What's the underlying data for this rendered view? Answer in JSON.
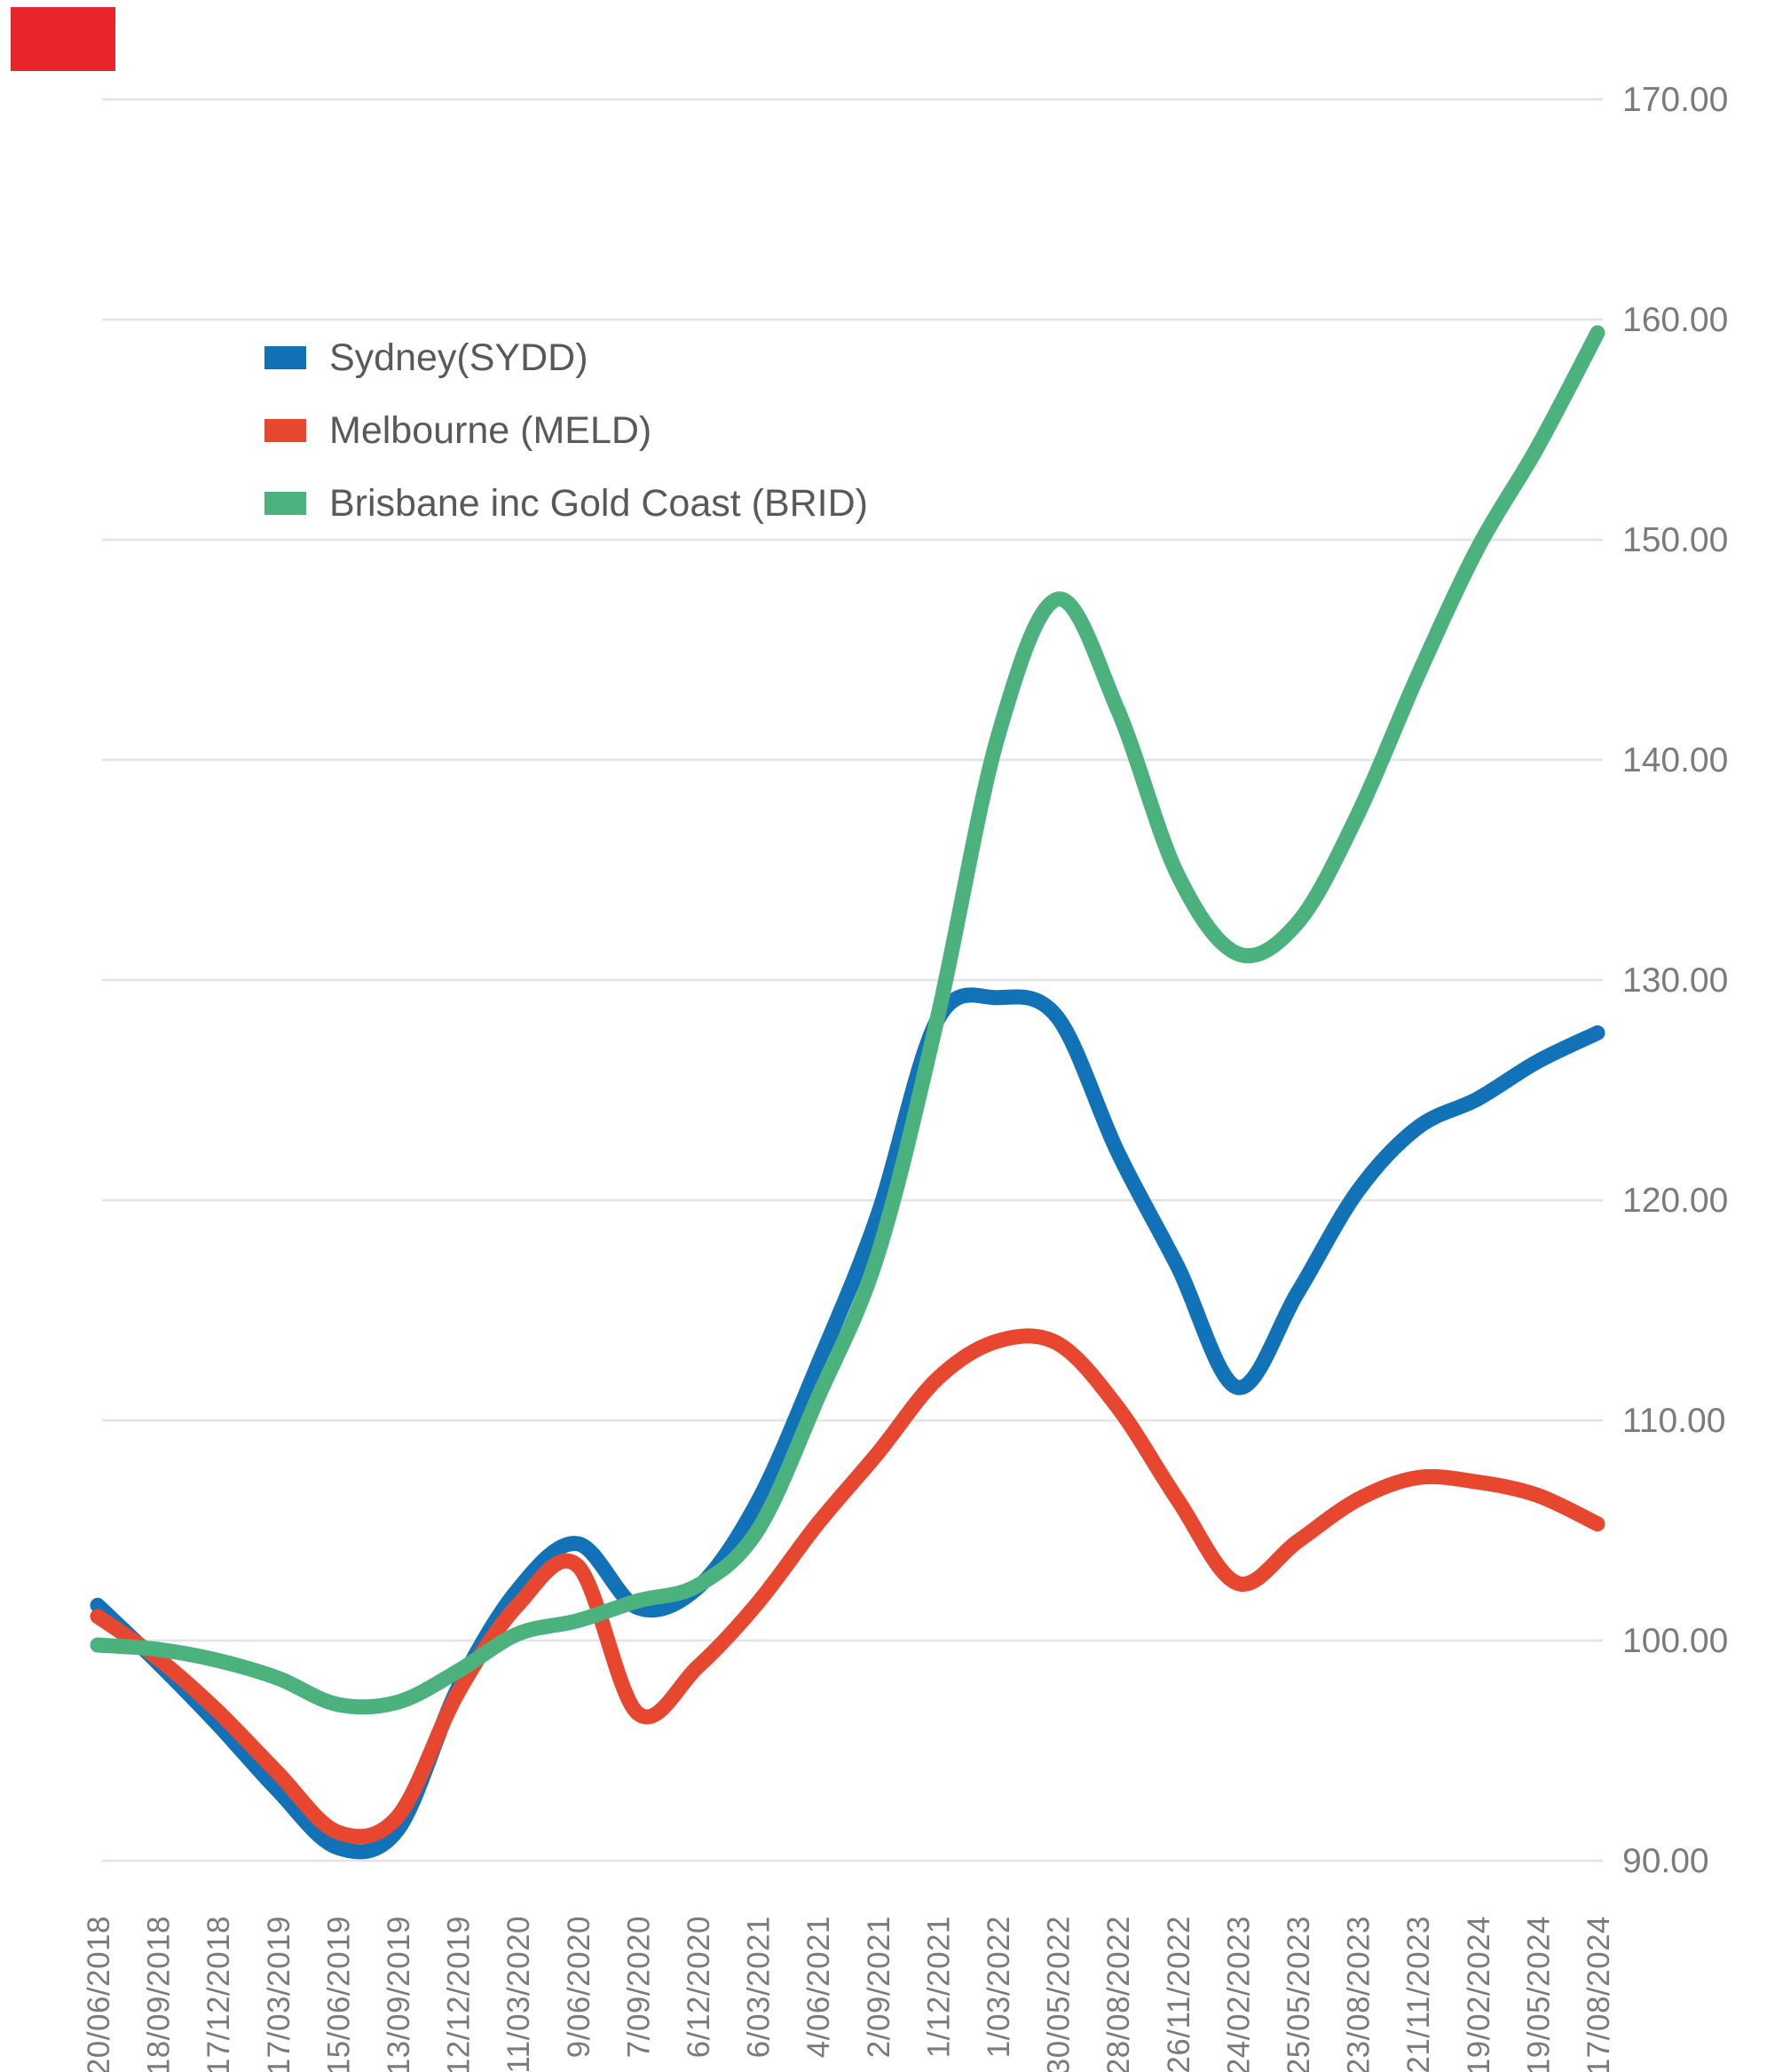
{
  "chart_data": {
    "type": "line",
    "title": "",
    "xlabel": "",
    "ylabel": "",
    "x_labels": [
      "20/06/2018",
      "18/09/2018",
      "17/12/2018",
      "17/03/2019",
      "15/06/2019",
      "13/09/2019",
      "12/12/2019",
      "11/03/2020",
      "9/06/2020",
      "7/09/2020",
      "6/12/2020",
      "6/03/2021",
      "4/06/2021",
      "2/09/2021",
      "1/12/2021",
      "1/03/2022",
      "30/05/2022",
      "28/08/2022",
      "26/11/2022",
      "24/02/2023",
      "25/05/2023",
      "23/08/2023",
      "21/11/2023",
      "19/02/2024",
      "19/05/2024",
      "17/08/2024"
    ],
    "series": [
      {
        "name": "Sydney(SYDD)",
        "color": "#1272b8",
        "values": [
          101.6,
          99.0,
          96.2,
          93.2,
          90.6,
          91.4,
          97.8,
          102.3,
          104.4,
          101.5,
          102.4,
          106.3,
          112.5,
          119.3,
          128.2,
          129.2,
          128.3,
          122.2,
          117.0,
          111.5,
          115.8,
          120.4,
          123.3,
          124.6,
          126.3,
          127.6
        ]
      },
      {
        "name": "Melbourne (MELD)",
        "color": "#e7472f",
        "values": [
          101.1,
          99.2,
          96.8,
          94.0,
          91.3,
          92.0,
          97.6,
          101.6,
          103.4,
          96.7,
          98.8,
          101.7,
          105.3,
          108.5,
          111.9,
          113.6,
          113.5,
          110.6,
          106.4,
          102.6,
          104.5,
          106.4,
          107.4,
          107.2,
          106.6,
          105.3
        ]
      },
      {
        "name": "Brisbane inc Gold Coast (BRID)",
        "color": "#4bb27d",
        "values": [
          99.8,
          99.6,
          99.1,
          98.3,
          97.1,
          97.2,
          98.6,
          100.3,
          100.9,
          101.8,
          102.5,
          105.0,
          111.0,
          117.5,
          128.3,
          141.0,
          147.3,
          142.3,
          134.8,
          131.2,
          132.6,
          137.5,
          143.8,
          149.6,
          154.2,
          159.4
        ]
      }
    ],
    "y_axis": {
      "min": 90,
      "max": 170,
      "step": 10,
      "labels": [
        "170.00",
        "160.00",
        "150.00",
        "140.00",
        "130.00",
        "120.00",
        "110.00",
        "100.00",
        "90.00"
      ]
    },
    "grid": true,
    "legend_position": "top-left-inside"
  },
  "marker": {
    "color": "#e8252d"
  },
  "colors": {
    "background": "#ffffff",
    "gridline": "#e3e3e3",
    "axis_text": "#7b7b7b",
    "legend_text": "#595959"
  }
}
